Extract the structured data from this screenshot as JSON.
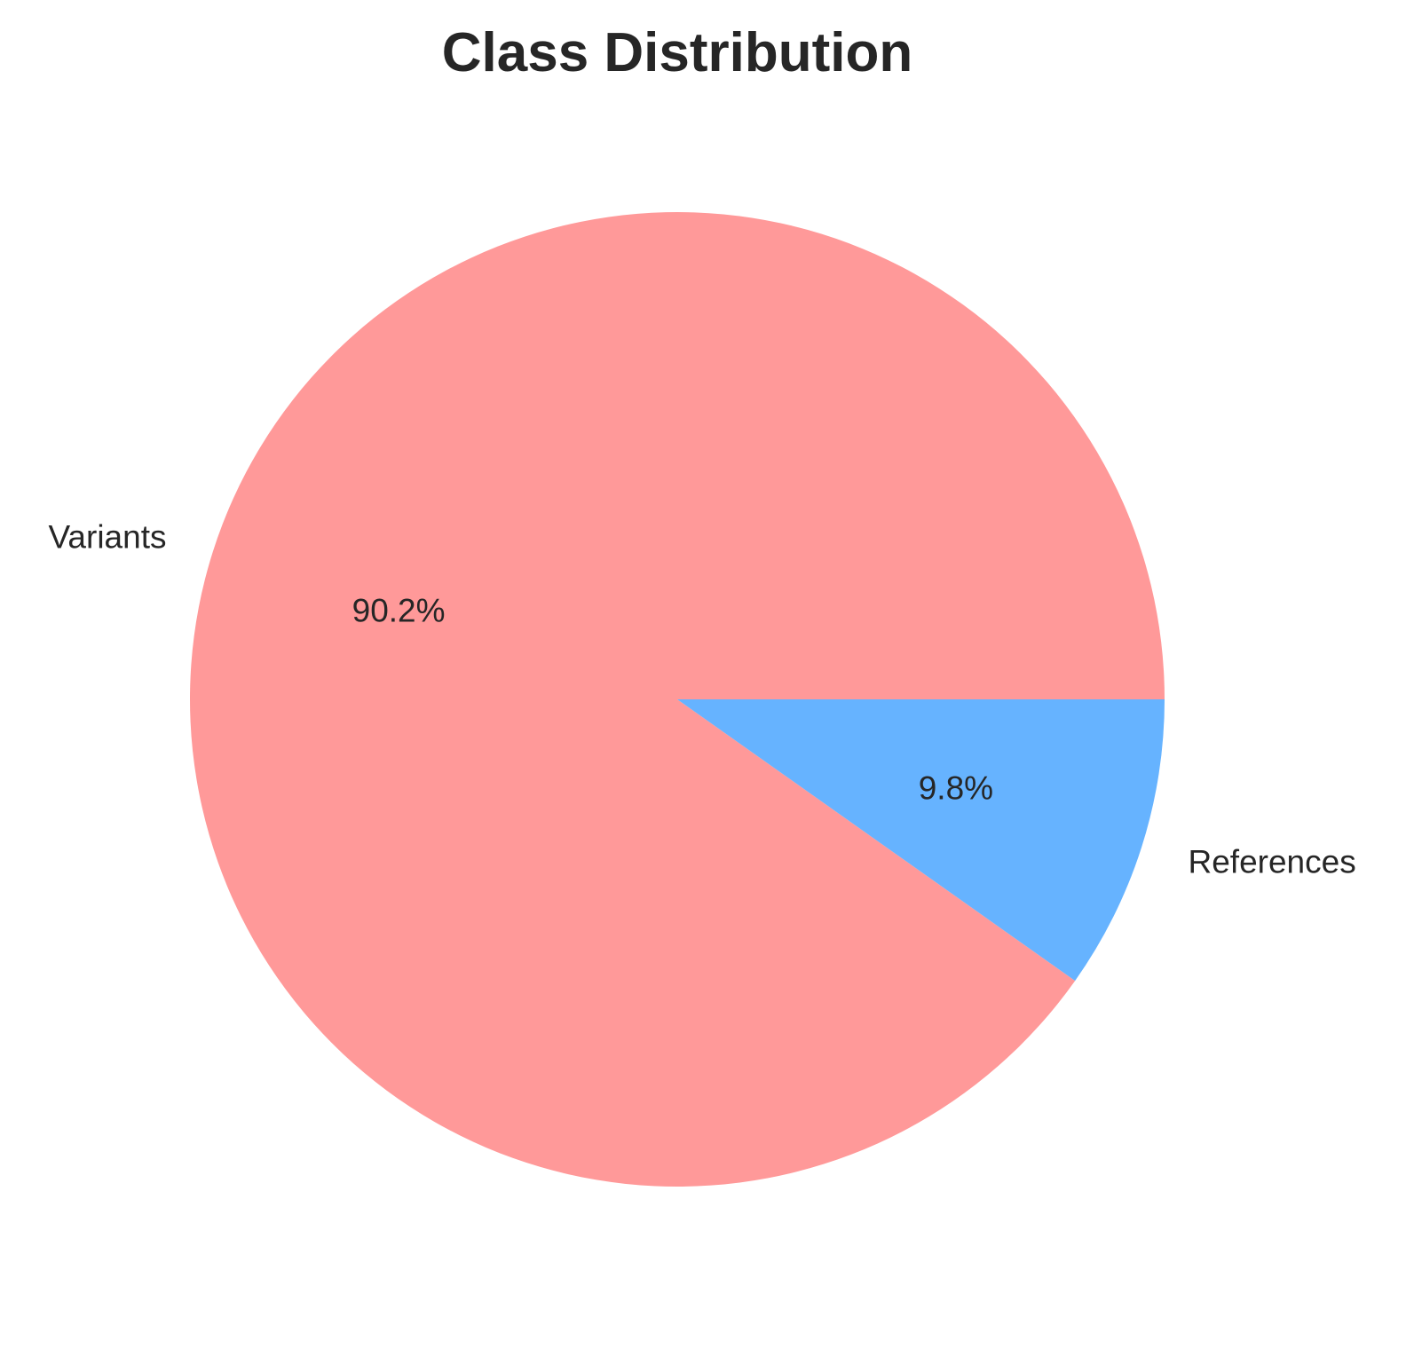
{
  "chart_data": {
    "type": "pie",
    "title": "Class Distribution",
    "start_angle_deg": 0,
    "direction": "counterclockwise",
    "slices": [
      {
        "label": "Variants",
        "value": 90.2,
        "pct_label": "90.2%",
        "color": "#ff9999"
      },
      {
        "label": "References",
        "value": 9.8,
        "pct_label": "9.8%",
        "color": "#66b3ff"
      }
    ]
  }
}
